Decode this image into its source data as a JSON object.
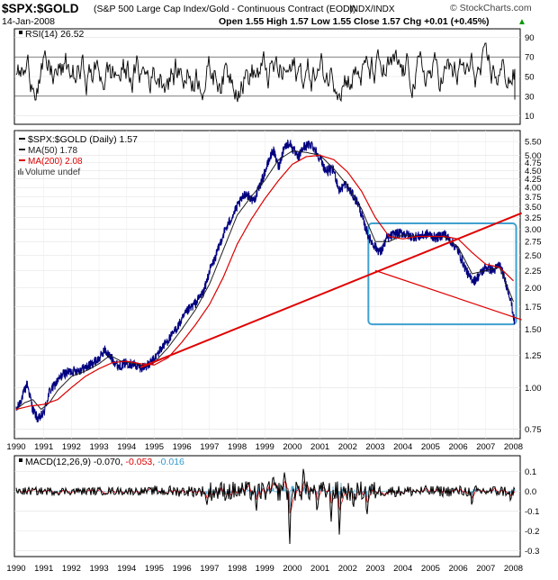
{
  "header": {
    "symbol": "$SPX:$GOLD",
    "description": "(S&P 500 Large Cap Index/Gold - Continuous Contract (EOD))",
    "exchange": "INDX/INDX",
    "date": "14-Jan-2008",
    "ohlc": "Open 1.55  High 1.57  Low 1.55  Close 1.57  Chg +0.01 (+0.45%)",
    "ohlc_arrow": "▲",
    "watermark": "© StockCharts.com"
  },
  "legends": {
    "rsi": "RSI(14) 26.52",
    "price": "$SPX:$GOLD (Daily) 1.57",
    "ma50": "MA(50) 1.78",
    "ma200": "MA(200) 2.08",
    "volume": "Volume undef",
    "macd_label": "MACD(12,26,9)",
    "macd_v1": "-0.070,",
    "macd_v2": "-0.053,",
    "macd_v3": "-0.016"
  },
  "colors": {
    "price": "#000080",
    "ma50": "#202020",
    "ma200": "#dd0000",
    "trendline": "#e00000",
    "box": "#3fa0d0",
    "macd_signal": "#dd0000",
    "macd_hist": "#3399cc"
  },
  "chart_data": [
    {
      "type": "line",
      "panel": "RSI",
      "series": [
        {
          "name": "RSI(14)",
          "values_range": [
            10,
            90
          ],
          "last": 26.52
        }
      ],
      "yticks": [
        10,
        30,
        50,
        70,
        90
      ],
      "reference_lines": [
        30,
        70
      ]
    },
    {
      "type": "line",
      "panel": "Price",
      "yscale": "log",
      "ylim": [
        0.72,
        5.75
      ],
      "xlim": [
        1990,
        2008.05
      ],
      "yticks": [
        "0.75",
        "1.00",
        "1.25",
        "1.50",
        "1.75",
        "2.00",
        "2.25",
        "2.50",
        "2.75",
        "3.00",
        "3.25",
        "3.50",
        "3.75",
        "4.00",
        "4.25",
        "4.50",
        "4.75",
        "5.00",
        "5.50"
      ],
      "xticks": [
        "1990",
        "1991",
        "1992",
        "1993",
        "1994",
        "1995",
        "1996",
        "1997",
        "1998",
        "1999",
        "2000",
        "2001",
        "2002",
        "2003",
        "2004",
        "2005",
        "2006",
        "2007",
        "2008"
      ],
      "series": [
        {
          "name": "$SPX:$GOLD",
          "points": [
            [
              1990.0,
              0.85
            ],
            [
              1990.2,
              0.93
            ],
            [
              1990.4,
              1.03
            ],
            [
              1990.6,
              0.86
            ],
            [
              1990.8,
              0.8
            ],
            [
              1991.0,
              0.84
            ],
            [
              1991.2,
              0.97
            ],
            [
              1991.4,
              1.02
            ],
            [
              1991.7,
              1.1
            ],
            [
              1992.0,
              1.12
            ],
            [
              1992.3,
              1.13
            ],
            [
              1992.6,
              1.16
            ],
            [
              1993.0,
              1.22
            ],
            [
              1993.2,
              1.3
            ],
            [
              1993.4,
              1.24
            ],
            [
              1993.7,
              1.16
            ],
            [
              1994.0,
              1.19
            ],
            [
              1994.3,
              1.17
            ],
            [
              1994.5,
              1.15
            ],
            [
              1994.8,
              1.17
            ],
            [
              1995.0,
              1.22
            ],
            [
              1995.3,
              1.33
            ],
            [
              1995.6,
              1.42
            ],
            [
              1995.9,
              1.55
            ],
            [
              1996.2,
              1.7
            ],
            [
              1996.5,
              1.8
            ],
            [
              1996.8,
              1.95
            ],
            [
              1997.0,
              2.25
            ],
            [
              1997.2,
              2.45
            ],
            [
              1997.5,
              2.9
            ],
            [
              1997.8,
              3.25
            ],
            [
              1998.0,
              3.5
            ],
            [
              1998.3,
              3.85
            ],
            [
              1998.6,
              3.65
            ],
            [
              1998.8,
              4.0
            ],
            [
              1999.0,
              4.45
            ],
            [
              1999.3,
              5.2
            ],
            [
              1999.5,
              4.6
            ],
            [
              1999.7,
              5.3
            ],
            [
              1999.9,
              5.45
            ],
            [
              2000.2,
              4.9
            ],
            [
              2000.4,
              5.3
            ],
            [
              2000.7,
              5.4
            ],
            [
              2001.0,
              4.9
            ],
            [
              2001.2,
              4.5
            ],
            [
              2001.5,
              4.5
            ],
            [
              2001.7,
              3.9
            ],
            [
              2001.9,
              4.1
            ],
            [
              2002.1,
              3.9
            ],
            [
              2002.4,
              3.55
            ],
            [
              2002.6,
              3.1
            ],
            [
              2002.8,
              2.8
            ],
            [
              2003.0,
              2.65
            ],
            [
              2003.2,
              2.55
            ],
            [
              2003.4,
              2.8
            ],
            [
              2003.7,
              2.9
            ],
            [
              2004.0,
              2.92
            ],
            [
              2004.3,
              2.85
            ],
            [
              2004.6,
              2.85
            ],
            [
              2004.9,
              2.9
            ],
            [
              2005.2,
              2.82
            ],
            [
              2005.5,
              2.9
            ],
            [
              2005.8,
              2.72
            ],
            [
              2006.0,
              2.58
            ],
            [
              2006.2,
              2.35
            ],
            [
              2006.4,
              2.15
            ],
            [
              2006.6,
              2.1
            ],
            [
              2006.8,
              2.2
            ],
            [
              2007.0,
              2.3
            ],
            [
              2007.3,
              2.25
            ],
            [
              2007.5,
              2.35
            ],
            [
              2007.7,
              2.1
            ],
            [
              2007.9,
              1.85
            ],
            [
              2008.04,
              1.57
            ]
          ]
        },
        {
          "name": "MA(50)",
          "points": [
            [
              1990.0,
              0.86
            ],
            [
              1990.3,
              0.9
            ],
            [
              1990.6,
              0.92
            ],
            [
              1990.9,
              0.86
            ],
            [
              1991.2,
              0.9
            ],
            [
              1991.5,
              0.98
            ],
            [
              1992.0,
              1.08
            ],
            [
              1992.6,
              1.13
            ],
            [
              1993.0,
              1.18
            ],
            [
              1993.4,
              1.25
            ],
            [
              1993.8,
              1.2
            ],
            [
              1994.3,
              1.18
            ],
            [
              1994.7,
              1.16
            ],
            [
              1995.0,
              1.19
            ],
            [
              1995.5,
              1.32
            ],
            [
              1996.0,
              1.5
            ],
            [
              1996.5,
              1.72
            ],
            [
              1997.0,
              2.05
            ],
            [
              1997.5,
              2.6
            ],
            [
              1998.0,
              3.3
            ],
            [
              1998.5,
              3.75
            ],
            [
              1999.0,
              4.2
            ],
            [
              1999.5,
              4.85
            ],
            [
              2000.0,
              5.15
            ],
            [
              2000.5,
              5.1
            ],
            [
              2001.0,
              5.0
            ],
            [
              2001.5,
              4.55
            ],
            [
              2002.0,
              4.05
            ],
            [
              2002.5,
              3.45
            ],
            [
              2003.0,
              2.75
            ],
            [
              2003.5,
              2.75
            ],
            [
              2004.0,
              2.88
            ],
            [
              2004.5,
              2.85
            ],
            [
              2005.0,
              2.85
            ],
            [
              2005.5,
              2.84
            ],
            [
              2006.0,
              2.65
            ],
            [
              2006.5,
              2.2
            ],
            [
              2007.0,
              2.25
            ],
            [
              2007.5,
              2.3
            ],
            [
              2008.04,
              1.78
            ]
          ]
        },
        {
          "name": "MA(200)",
          "points": [
            [
              1990.0,
              0.86
            ],
            [
              1990.5,
              0.88
            ],
            [
              1991.0,
              0.89
            ],
            [
              1991.5,
              0.92
            ],
            [
              1992.0,
              1.0
            ],
            [
              1992.5,
              1.08
            ],
            [
              1993.0,
              1.14
            ],
            [
              1993.5,
              1.19
            ],
            [
              1994.0,
              1.2
            ],
            [
              1994.5,
              1.18
            ],
            [
              1995.0,
              1.17
            ],
            [
              1995.5,
              1.23
            ],
            [
              1996.0,
              1.37
            ],
            [
              1996.5,
              1.55
            ],
            [
              1997.0,
              1.78
            ],
            [
              1997.5,
              2.15
            ],
            [
              1998.0,
              2.7
            ],
            [
              1998.5,
              3.2
            ],
            [
              1999.0,
              3.7
            ],
            [
              1999.5,
              4.2
            ],
            [
              2000.0,
              4.7
            ],
            [
              2000.5,
              4.95
            ],
            [
              2001.0,
              5.0
            ],
            [
              2001.5,
              4.85
            ],
            [
              2002.0,
              4.45
            ],
            [
              2002.5,
              3.9
            ],
            [
              2003.0,
              3.25
            ],
            [
              2003.5,
              2.85
            ],
            [
              2004.0,
              2.8
            ],
            [
              2004.5,
              2.85
            ],
            [
              2005.0,
              2.85
            ],
            [
              2005.5,
              2.85
            ],
            [
              2006.0,
              2.8
            ],
            [
              2006.5,
              2.55
            ],
            [
              2007.0,
              2.35
            ],
            [
              2007.5,
              2.3
            ],
            [
              2008.04,
              2.08
            ]
          ]
        }
      ],
      "annotations": {
        "support_line": [
          [
            1994.5,
            1.15
          ],
          [
            2008.3,
            3.35
          ]
        ],
        "down_line": [
          [
            2003.0,
            2.25
          ],
          [
            2008.3,
            1.6
          ]
        ],
        "box": {
          "x": [
            2002.75,
            2008.1
          ],
          "y": [
            1.55,
            3.12
          ]
        }
      }
    },
    {
      "type": "line",
      "panel": "MACD",
      "ylim": [
        -0.32,
        0.16
      ],
      "yticks": [
        "0.1",
        "0.0",
        "-0.1",
        "-0.2",
        "-0.3"
      ],
      "series": [
        {
          "name": "MACD",
          "last": -0.07
        },
        {
          "name": "Signal",
          "last": -0.053
        },
        {
          "name": "Histogram",
          "last": -0.016
        }
      ]
    }
  ]
}
